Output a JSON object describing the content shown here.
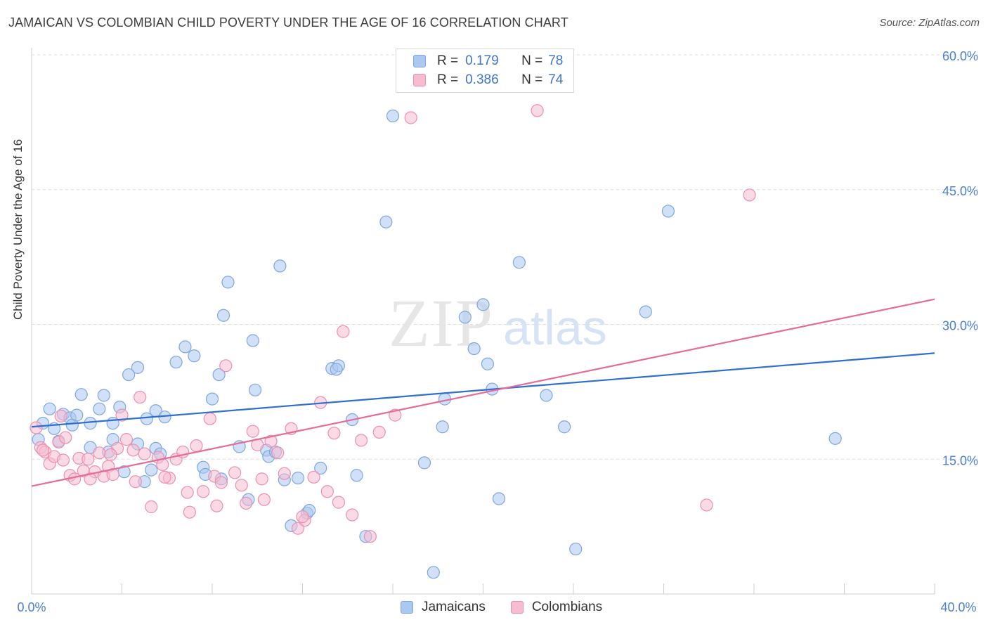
{
  "header": {
    "title": "JAMAICAN VS COLOMBIAN CHILD POVERTY UNDER THE AGE OF 16 CORRELATION CHART",
    "source": "Source: ZipAtlas.com"
  },
  "watermark": {
    "zip": "ZIP",
    "atlas": "atlas"
  },
  "legend": {
    "rows": [
      {
        "r_label": "R =",
        "r_value": "0.179",
        "n_label": "N =",
        "n_value": "78"
      },
      {
        "r_label": "R =",
        "r_value": "0.386",
        "n_label": "N =",
        "n_value": "74"
      }
    ]
  },
  "bottom_legend": {
    "jamaicans": "Jamaicans",
    "colombians": "Colombians"
  },
  "colors": {
    "jamaicans_fill": "#aac8f0",
    "jamaicans_stroke": "#7fa6de",
    "jamaicans_line": "#2f6fcf",
    "colombians_fill": "#f6bcd0",
    "colombians_stroke": "#ec8fb0",
    "colombians_line": "#e56b99",
    "tick_text": "#4a7fd4",
    "grid": "#dcdcdc"
  },
  "chart_data": {
    "type": "scatter",
    "title": "JAMAICAN VS COLOMBIAN CHILD POVERTY UNDER THE AGE OF 16 CORRELATION CHART",
    "xlabel": "",
    "ylabel": "Child Poverty Under the Age of 16",
    "xlim": [
      0,
      40
    ],
    "ylim": [
      0,
      60
    ],
    "x_ticks": [
      "0.0%",
      "40.0%"
    ],
    "y_ticks": [
      {
        "value": 15,
        "label": "15.0%"
      },
      {
        "value": 30,
        "label": "30.0%"
      },
      {
        "value": 45,
        "label": "45.0%"
      },
      {
        "value": 60,
        "label": "60.0%"
      }
    ],
    "grid": true,
    "legend_position": "top-center",
    "series": [
      {
        "name": "Jamaicans",
        "r": 0.179,
        "n": 78,
        "trend": {
          "x": [
            0,
            40
          ],
          "y": [
            18.6,
            26.8
          ]
        },
        "points": [
          [
            0.3,
            17.2
          ],
          [
            0.5,
            19.0
          ],
          [
            0.8,
            20.6
          ],
          [
            1.0,
            18.4
          ],
          [
            1.2,
            17.0
          ],
          [
            1.4,
            20.0
          ],
          [
            1.7,
            19.6
          ],
          [
            1.8,
            18.8
          ],
          [
            2.0,
            19.9
          ],
          [
            2.2,
            22.2
          ],
          [
            2.6,
            19.0
          ],
          [
            3.0,
            20.6
          ],
          [
            3.2,
            22.1
          ],
          [
            3.6,
            19.0
          ],
          [
            3.9,
            20.8
          ],
          [
            4.3,
            24.4
          ],
          [
            4.7,
            25.2
          ],
          [
            5.1,
            19.5
          ],
          [
            5.5,
            20.4
          ],
          [
            5.9,
            19.7
          ],
          [
            5.5,
            16.2
          ],
          [
            5.7,
            15.6
          ],
          [
            6.4,
            25.8
          ],
          [
            6.8,
            27.5
          ],
          [
            7.2,
            26.5
          ],
          [
            7.6,
            14.1
          ],
          [
            8.0,
            21.7
          ],
          [
            8.5,
            31.0
          ],
          [
            8.7,
            34.7
          ],
          [
            8.3,
            24.4
          ],
          [
            9.2,
            16.4
          ],
          [
            9.8,
            28.2
          ],
          [
            9.9,
            22.7
          ],
          [
            10.4,
            16.0
          ],
          [
            10.5,
            15.3
          ],
          [
            11.0,
            36.5
          ],
          [
            11.2,
            12.7
          ],
          [
            11.5,
            7.6
          ],
          [
            11.8,
            12.9
          ],
          [
            12.2,
            9.0
          ],
          [
            12.8,
            14.0
          ],
          [
            13.3,
            25.1
          ],
          [
            13.6,
            25.4
          ],
          [
            14.2,
            19.4
          ],
          [
            14.4,
            13.2
          ],
          [
            14.8,
            6.4
          ],
          [
            15.7,
            41.4
          ],
          [
            16.0,
            53.2
          ],
          [
            17.4,
            14.6
          ],
          [
            17.8,
            2.4
          ],
          [
            18.2,
            18.6
          ],
          [
            18.3,
            21.7
          ],
          [
            19.2,
            30.8
          ],
          [
            19.6,
            27.3
          ],
          [
            20.0,
            32.2
          ],
          [
            20.2,
            25.6
          ],
          [
            20.4,
            22.8
          ],
          [
            20.7,
            10.6
          ],
          [
            21.6,
            36.9
          ],
          [
            22.8,
            22.1
          ],
          [
            23.6,
            18.6
          ],
          [
            24.1,
            5.0
          ],
          [
            27.2,
            31.4
          ],
          [
            28.2,
            42.6
          ],
          [
            35.6,
            17.3
          ],
          [
            2.6,
            16.3
          ],
          [
            3.4,
            15.8
          ],
          [
            4.1,
            13.6
          ],
          [
            5.0,
            12.5
          ],
          [
            5.3,
            13.8
          ],
          [
            7.7,
            13.3
          ],
          [
            8.4,
            12.8
          ],
          [
            9.6,
            10.5
          ],
          [
            10.8,
            15.8
          ],
          [
            12.3,
            9.3
          ],
          [
            13.5,
            25.0
          ],
          [
            3.6,
            17.2
          ],
          [
            4.7,
            16.7
          ]
        ]
      },
      {
        "name": "Colombians",
        "r": 0.386,
        "n": 74,
        "trend": {
          "x": [
            0,
            40
          ],
          "y": [
            12.0,
            32.8
          ]
        },
        "points": [
          [
            0.2,
            18.5
          ],
          [
            0.4,
            16.3
          ],
          [
            0.6,
            15.8
          ],
          [
            0.8,
            14.5
          ],
          [
            1.0,
            15.3
          ],
          [
            1.2,
            16.9
          ],
          [
            1.3,
            19.8
          ],
          [
            1.5,
            17.4
          ],
          [
            1.7,
            13.2
          ],
          [
            1.9,
            12.8
          ],
          [
            2.1,
            15.1
          ],
          [
            2.3,
            13.7
          ],
          [
            2.5,
            15.0
          ],
          [
            2.8,
            13.6
          ],
          [
            3.0,
            15.7
          ],
          [
            3.2,
            13.1
          ],
          [
            3.4,
            14.2
          ],
          [
            3.6,
            13.3
          ],
          [
            3.8,
            16.2
          ],
          [
            4.0,
            19.9
          ],
          [
            4.2,
            17.2
          ],
          [
            4.5,
            16.0
          ],
          [
            4.8,
            21.9
          ],
          [
            5.0,
            15.6
          ],
          [
            5.3,
            9.7
          ],
          [
            5.6,
            15.2
          ],
          [
            5.8,
            14.4
          ],
          [
            6.1,
            12.9
          ],
          [
            6.4,
            15.0
          ],
          [
            6.7,
            15.8
          ],
          [
            7.0,
            9.1
          ],
          [
            7.3,
            16.5
          ],
          [
            7.6,
            11.4
          ],
          [
            7.9,
            19.5
          ],
          [
            8.1,
            13.1
          ],
          [
            8.4,
            12.4
          ],
          [
            8.6,
            25.4
          ],
          [
            9.0,
            13.5
          ],
          [
            9.3,
            12.1
          ],
          [
            9.5,
            10.1
          ],
          [
            9.8,
            18.1
          ],
          [
            10.0,
            16.6
          ],
          [
            10.3,
            10.5
          ],
          [
            10.6,
            17.0
          ],
          [
            10.9,
            15.7
          ],
          [
            11.2,
            13.4
          ],
          [
            11.5,
            18.4
          ],
          [
            11.8,
            7.3
          ],
          [
            12.1,
            8.2
          ],
          [
            12.5,
            13.0
          ],
          [
            12.8,
            21.3
          ],
          [
            13.1,
            11.4
          ],
          [
            13.4,
            17.9
          ],
          [
            13.6,
            10.2
          ],
          [
            13.8,
            29.2
          ],
          [
            14.2,
            8.8
          ],
          [
            14.6,
            17.1
          ],
          [
            15.0,
            6.4
          ],
          [
            15.4,
            18.0
          ],
          [
            16.1,
            19.9
          ],
          [
            16.8,
            53.0
          ],
          [
            22.4,
            53.8
          ],
          [
            29.9,
            9.9
          ],
          [
            31.8,
            44.4
          ],
          [
            0.5,
            16.0
          ],
          [
            1.4,
            14.9
          ],
          [
            2.6,
            12.8
          ],
          [
            3.5,
            15.5
          ],
          [
            4.6,
            12.5
          ],
          [
            5.9,
            13.0
          ],
          [
            6.9,
            11.3
          ],
          [
            8.2,
            9.8
          ],
          [
            10.2,
            12.8
          ],
          [
            12.0,
            8.6
          ]
        ]
      }
    ]
  }
}
